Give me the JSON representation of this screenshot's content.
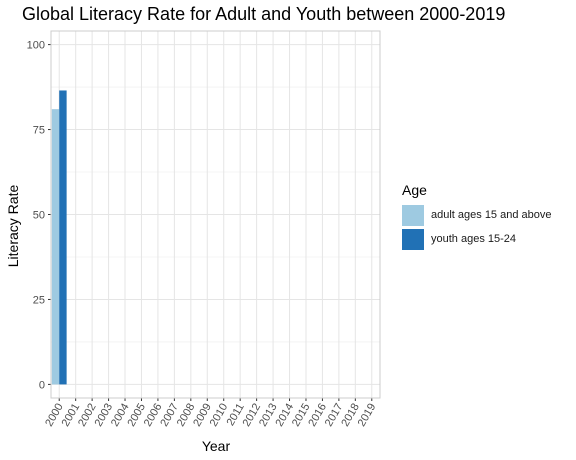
{
  "chart_data": {
    "type": "bar",
    "title": "Global Literacy Rate for Adult and Youth between 2000-2019",
    "xlabel": "Year",
    "ylabel": "Literacy Rate",
    "categories": [
      "2000",
      "2001",
      "2002",
      "2003",
      "2004",
      "2005",
      "2006",
      "2007",
      "2008",
      "2009",
      "2010",
      "2011",
      "2012",
      "2013",
      "2014",
      "2015",
      "2016",
      "2017",
      "2018",
      "2019"
    ],
    "series": [
      {
        "name": "adult ages 15 and above",
        "color": "#9ecae1",
        "values": [
          81,
          null,
          null,
          null,
          null,
          null,
          null,
          null,
          null,
          null,
          null,
          null,
          null,
          null,
          null,
          null,
          null,
          null,
          null,
          null
        ]
      },
      {
        "name": "youth ages 15-24",
        "color": "#2171b5",
        "values": [
          86.5,
          null,
          null,
          null,
          null,
          null,
          null,
          null,
          null,
          null,
          null,
          null,
          null,
          null,
          null,
          null,
          null,
          null,
          null,
          null
        ]
      }
    ],
    "ylim": [
      -4,
      104
    ],
    "yticks": [
      0,
      25,
      50,
      75,
      100
    ],
    "grid": true,
    "legend": {
      "title": "Age",
      "position": "right"
    }
  }
}
